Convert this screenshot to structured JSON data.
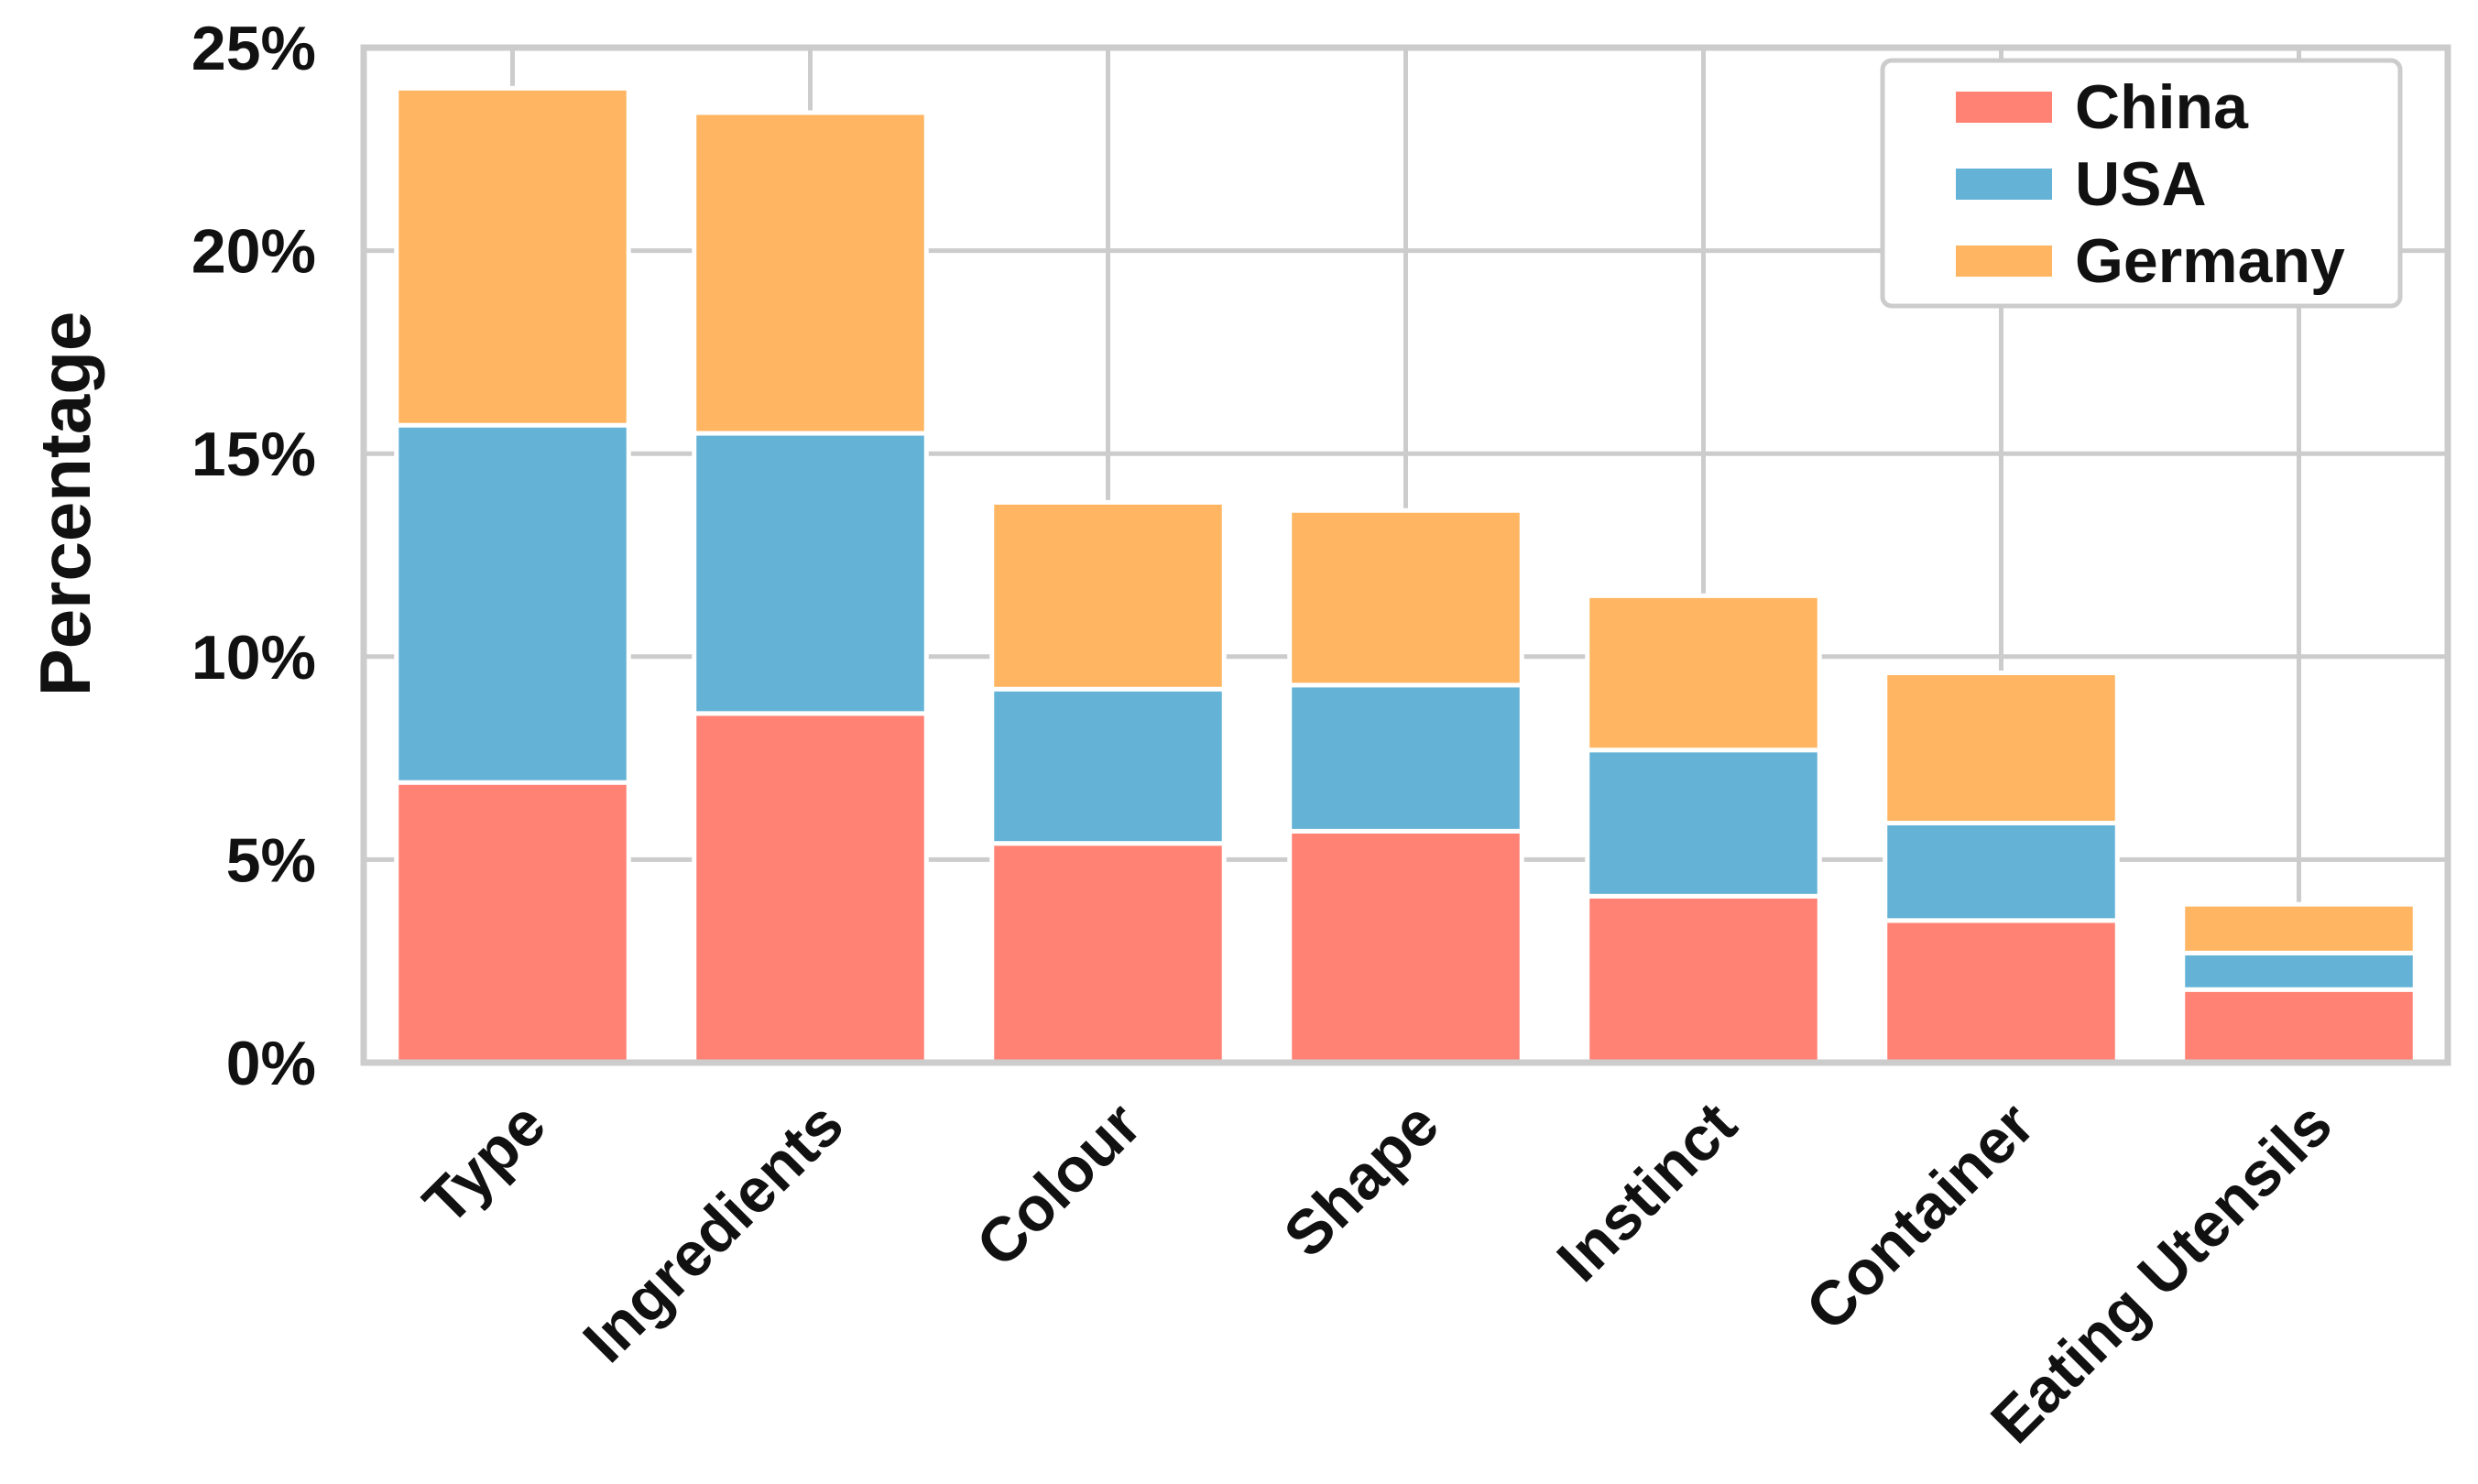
{
  "chart_data": {
    "type": "bar",
    "stacked": true,
    "title": "",
    "xlabel": "",
    "ylabel": "Percentage",
    "ylim": [
      0,
      25
    ],
    "yticks": [
      0,
      5,
      10,
      15,
      20,
      25
    ],
    "ytick_labels": [
      "0%",
      "5%",
      "10%",
      "15%",
      "20%",
      "25%"
    ],
    "grid": true,
    "legend_position": "top-right",
    "categories": [
      "Type",
      "Ingredients",
      "Colour",
      "Shape",
      "Instinct",
      "Container",
      "Eating Utensils"
    ],
    "series": [
      {
        "name": "China",
        "color": "#FF8274",
        "values": [
          6.9,
          8.6,
          5.4,
          5.7,
          4.1,
          3.5,
          1.8
        ]
      },
      {
        "name": "USA",
        "color": "#64B2D6",
        "values": [
          8.8,
          6.9,
          3.8,
          3.6,
          3.6,
          2.4,
          0.9
        ]
      },
      {
        "name": "Germany",
        "color": "#FFB562",
        "values": [
          8.3,
          7.9,
          4.6,
          4.3,
          3.8,
          3.7,
          1.2
        ]
      }
    ]
  }
}
